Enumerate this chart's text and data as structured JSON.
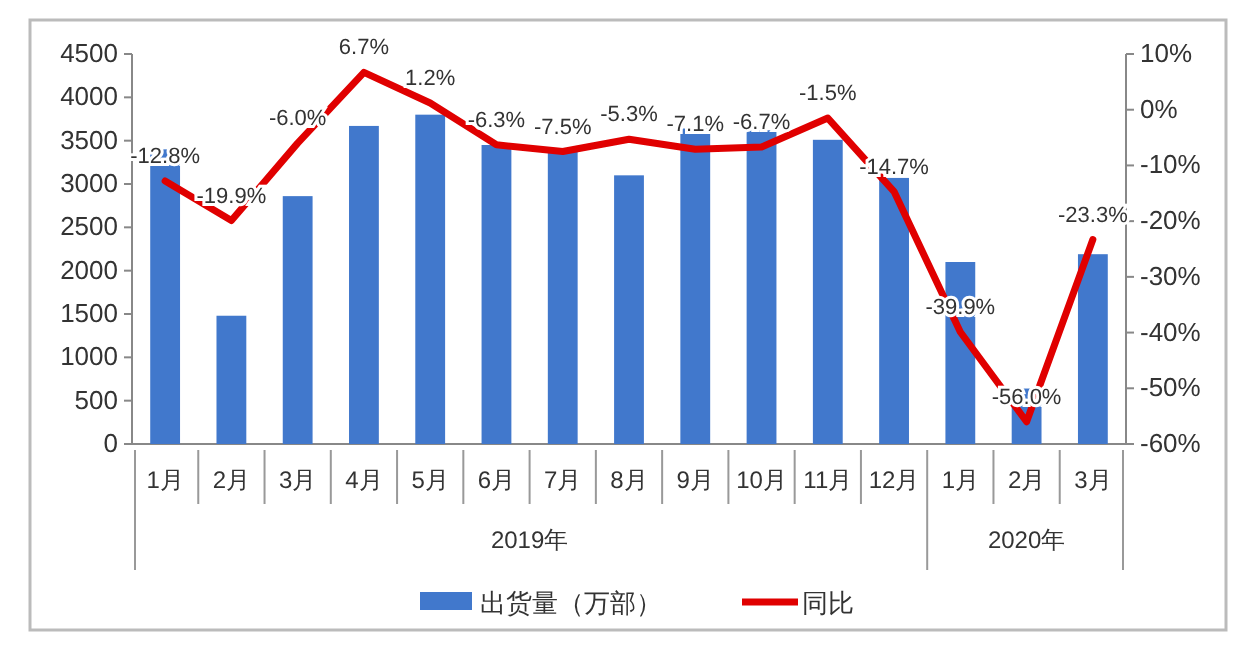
{
  "chart_data": {
    "type": "bar",
    "categories": [
      "1月",
      "2月",
      "3月",
      "4月",
      "5月",
      "6月",
      "7月",
      "8月",
      "9月",
      "10月",
      "11月",
      "12月",
      "1月",
      "2月",
      "3月"
    ],
    "series": [
      {
        "name": "出货量（万部）",
        "color": "#4178cc",
        "values": [
          3400,
          1480,
          2860,
          3670,
          3800,
          3450,
          3380,
          3100,
          3640,
          3620,
          3510,
          3070,
          2100,
          640,
          2190
        ]
      },
      {
        "name": "同比",
        "type": "line",
        "axis": "y2",
        "color": "#e00000",
        "values": [
          -12.8,
          -19.9,
          -6.0,
          6.7,
          1.2,
          -6.3,
          -7.5,
          -5.3,
          -7.1,
          -6.7,
          -1.5,
          -14.7,
          -39.9,
          -56.0,
          -23.3
        ],
        "value_labels": [
          "-12.8%",
          "-19.9%",
          "-6.0%",
          "6.7%",
          "1.2%",
          "-6.3%",
          "-7.5%",
          "-5.3%",
          "-7.1%",
          "-6.7%",
          "-1.5%",
          "-14.7%",
          "-39.9%",
          "-56.0%",
          "-23.3%"
        ]
      }
    ],
    "ylim": [
      0,
      4500
    ],
    "yticks": [
      0,
      500,
      1000,
      1500,
      2000,
      2500,
      3000,
      3500,
      4000,
      4500
    ],
    "y2lim": [
      -60,
      10
    ],
    "y2ticks": [
      {
        "value": -60,
        "label": "-60%"
      },
      {
        "value": -50,
        "label": "-50%"
      },
      {
        "value": -40,
        "label": "-40%"
      },
      {
        "value": -30,
        "label": "-30%"
      },
      {
        "value": -20,
        "label": "-20%"
      },
      {
        "value": -10,
        "label": "-10%"
      },
      {
        "value": 0,
        "label": "0%"
      },
      {
        "value": 10,
        "label": "10%"
      }
    ],
    "annotations": [
      "2019年",
      "2020年"
    ],
    "grid": false,
    "legend": "bottom"
  }
}
